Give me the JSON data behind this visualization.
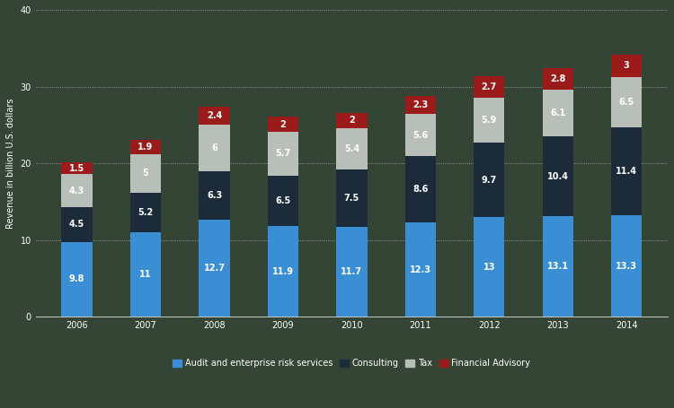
{
  "years": [
    "2006",
    "2007",
    "2008",
    "2009",
    "2010",
    "2011",
    "2012",
    "2013",
    "2014"
  ],
  "audit": [
    9.8,
    11,
    12.7,
    11.9,
    11.7,
    12.3,
    13,
    13.1,
    13.3
  ],
  "consulting": [
    4.5,
    5.2,
    6.3,
    6.5,
    7.5,
    8.6,
    9.7,
    10.4,
    11.4
  ],
  "tax": [
    4.3,
    5,
    6,
    5.7,
    5.4,
    5.6,
    5.9,
    6.1,
    6.5
  ],
  "financial_advisory": [
    1.5,
    1.9,
    2.4,
    2,
    2,
    2.3,
    2.7,
    2.8,
    3
  ],
  "audit_color": "#3a8fd4",
  "consulting_color": "#1c2b3a",
  "tax_color": "#b8bfb8",
  "financial_advisory_color": "#9b1a1a",
  "background_color": "#354535",
  "bar_width": 0.45,
  "ylabel": "Revenue in billion U.S. dollars",
  "ylim": [
    0,
    40
  ],
  "yticks": [
    0,
    10,
    20,
    30,
    40
  ],
  "ytick_labels": [
    "0",
    "10",
    "20",
    "30",
    "40"
  ],
  "legend_labels": [
    "Audit and enterprise risk services",
    "Consulting",
    "Tax",
    "Financial Advisory"
  ],
  "label_fontsize": 7,
  "axis_label_fontsize": 7,
  "tick_fontsize": 7,
  "legend_fontsize": 7
}
